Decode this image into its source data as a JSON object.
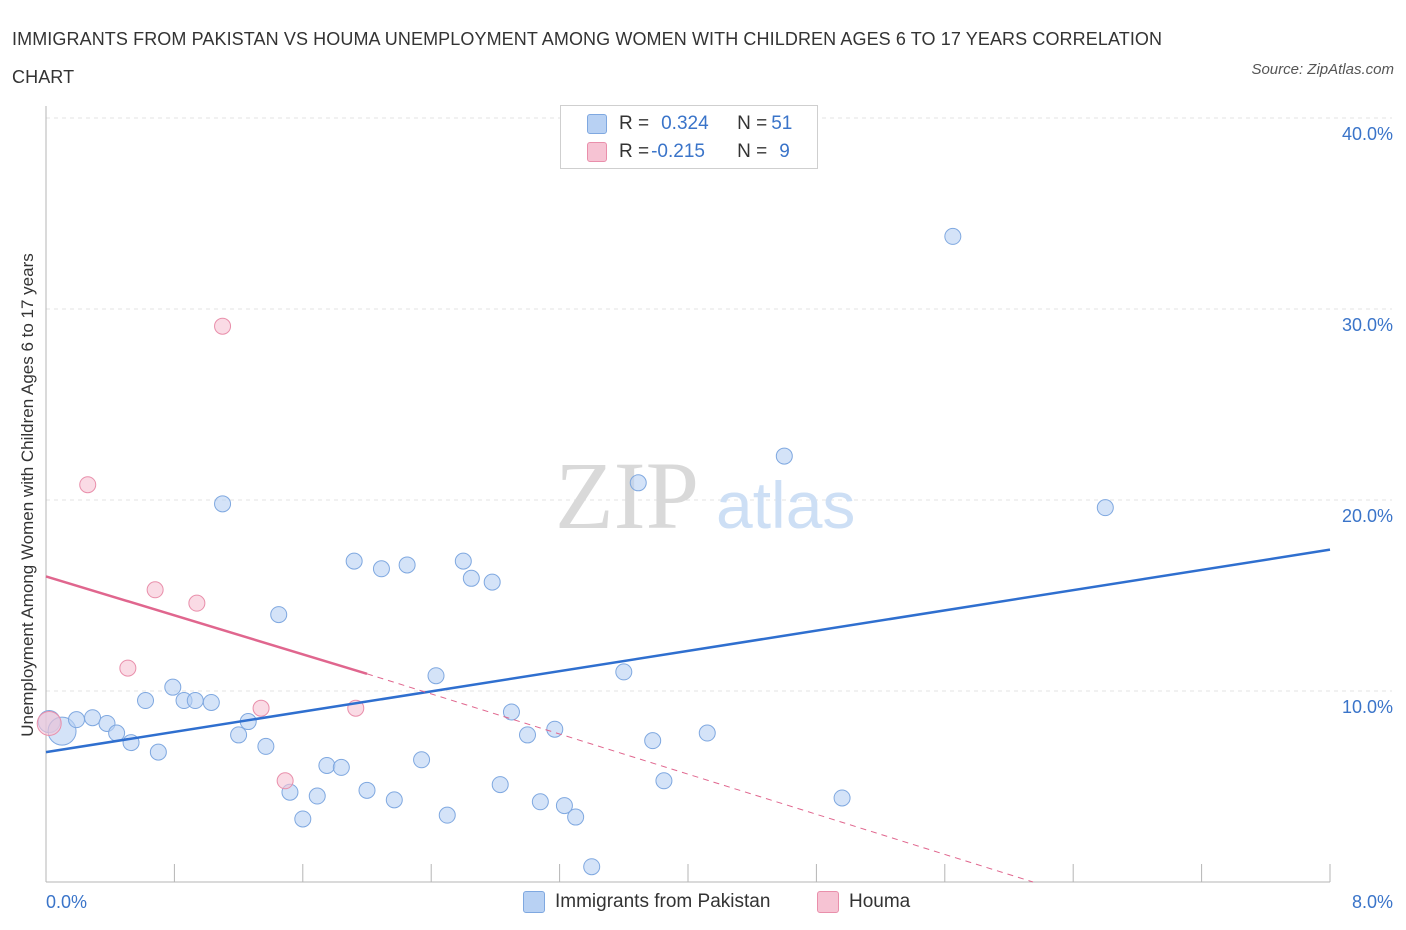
{
  "title": "IMMIGRANTS FROM PAKISTAN VS HOUMA UNEMPLOYMENT AMONG WOMEN WITH CHILDREN AGES 6 TO 17 YEARS CORRELATION CHART",
  "source": "Source: ZipAtlas.com",
  "watermark": {
    "zip": "ZIP",
    "atlas": "atlas"
  },
  "colors": {
    "blue_fill": "#b8d1f3",
    "blue_stroke": "#7fa8e0",
    "blue_line": "#2f6fcf",
    "pink_fill": "#f6c3d3",
    "pink_stroke": "#e98fab",
    "pink_line": "#e0668e",
    "tick_text": "#3a74c9",
    "grid": "#e3e3e3"
  },
  "legend": {
    "rows": [
      {
        "r_label": "R = ",
        "r_value": "0.324",
        "n_label": "N = ",
        "n_value": "51"
      },
      {
        "r_label": "R = ",
        "r_value": "-0.215",
        "n_label": "N = ",
        "n_value": "9"
      }
    ]
  },
  "chart_data": {
    "type": "scatter",
    "title": "IMMIGRANTS FROM PAKISTAN VS HOUMA UNEMPLOYMENT AMONG WOMEN WITH CHILDREN AGES 6 TO 17 YEARS CORRELATION CHART",
    "xlabel": "",
    "ylabel": "Unemployment Among Women with Children Ages 6 to 17 years",
    "xlim": [
      0,
      8
    ],
    "ylim": [
      0,
      40
    ],
    "x_tick_labels": [
      "0.0%",
      "8.0%"
    ],
    "y_ticks": [
      10,
      20,
      30,
      40
    ],
    "y_tick_labels": [
      "10.0%",
      "20.0%",
      "30.0%",
      "40.0%"
    ],
    "legend_position": "bottom-center",
    "series": [
      {
        "name": "Immigrants from Pakistan",
        "color": "#b8d1f3",
        "trend": {
          "x": [
            0,
            8
          ],
          "y": [
            6.8,
            17.4
          ]
        },
        "points": [
          {
            "x": 0.02,
            "y": 8.4
          },
          {
            "x": 0.1,
            "y": 7.9
          },
          {
            "x": 0.19,
            "y": 8.5
          },
          {
            "x": 0.29,
            "y": 8.6
          },
          {
            "x": 0.38,
            "y": 8.3
          },
          {
            "x": 0.44,
            "y": 7.8
          },
          {
            "x": 0.53,
            "y": 7.3
          },
          {
            "x": 0.62,
            "y": 9.5
          },
          {
            "x": 0.7,
            "y": 6.8
          },
          {
            "x": 0.79,
            "y": 10.2
          },
          {
            "x": 0.86,
            "y": 9.5
          },
          {
            "x": 0.93,
            "y": 9.5
          },
          {
            "x": 1.03,
            "y": 9.4
          },
          {
            "x": 1.1,
            "y": 19.8
          },
          {
            "x": 1.2,
            "y": 7.7
          },
          {
            "x": 1.26,
            "y": 8.4
          },
          {
            "x": 1.37,
            "y": 7.1
          },
          {
            "x": 1.45,
            "y": 14.0
          },
          {
            "x": 1.52,
            "y": 4.7
          },
          {
            "x": 1.6,
            "y": 3.3
          },
          {
            "x": 1.69,
            "y": 4.5
          },
          {
            "x": 1.75,
            "y": 6.1
          },
          {
            "x": 1.84,
            "y": 6.0
          },
          {
            "x": 1.92,
            "y": 16.8
          },
          {
            "x": 2.0,
            "y": 4.8
          },
          {
            "x": 2.09,
            "y": 16.4
          },
          {
            "x": 2.17,
            "y": 4.3
          },
          {
            "x": 2.25,
            "y": 16.6
          },
          {
            "x": 2.34,
            "y": 6.4
          },
          {
            "x": 2.43,
            "y": 10.8
          },
          {
            "x": 2.5,
            "y": 3.5
          },
          {
            "x": 2.6,
            "y": 16.8
          },
          {
            "x": 2.65,
            "y": 15.9
          },
          {
            "x": 2.78,
            "y": 15.7
          },
          {
            "x": 2.83,
            "y": 5.1
          },
          {
            "x": 2.9,
            "y": 8.9
          },
          {
            "x": 3.0,
            "y": 7.7
          },
          {
            "x": 3.08,
            "y": 4.2
          },
          {
            "x": 3.17,
            "y": 8.0
          },
          {
            "x": 3.23,
            "y": 4.0
          },
          {
            "x": 3.3,
            "y": 3.4
          },
          {
            "x": 3.4,
            "y": 0.8
          },
          {
            "x": 3.6,
            "y": 11.0
          },
          {
            "x": 3.69,
            "y": 20.9
          },
          {
            "x": 3.78,
            "y": 7.4
          },
          {
            "x": 3.85,
            "y": 5.3
          },
          {
            "x": 4.12,
            "y": 7.8
          },
          {
            "x": 4.6,
            "y": 22.3
          },
          {
            "x": 4.96,
            "y": 4.4
          },
          {
            "x": 5.65,
            "y": 33.8
          },
          {
            "x": 6.6,
            "y": 19.6
          }
        ]
      },
      {
        "name": "Houma",
        "color": "#f6c3d3",
        "trend": {
          "x": [
            0,
            2.0
          ],
          "y": [
            16.0,
            10.9
          ],
          "dashed_extension": {
            "x": [
              2.0,
              6.15
            ],
            "y": [
              10.9,
              0.0
            ]
          }
        },
        "points": [
          {
            "x": 0.02,
            "y": 8.3
          },
          {
            "x": 0.26,
            "y": 20.8
          },
          {
            "x": 0.51,
            "y": 11.2
          },
          {
            "x": 0.68,
            "y": 15.3
          },
          {
            "x": 0.94,
            "y": 14.6
          },
          {
            "x": 1.1,
            "y": 29.1
          },
          {
            "x": 1.34,
            "y": 9.1
          },
          {
            "x": 1.49,
            "y": 5.3
          },
          {
            "x": 1.93,
            "y": 9.1
          }
        ]
      }
    ]
  }
}
